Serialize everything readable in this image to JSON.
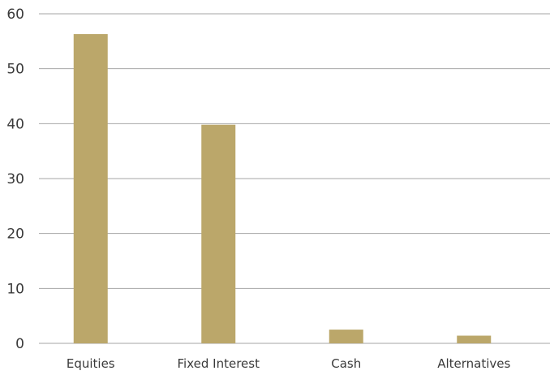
{
  "chart_data": {
    "type": "bar",
    "title": "",
    "xlabel": "",
    "ylabel": "",
    "categories": [
      "Equities",
      "Fixed Interest",
      "Cash",
      "Alternatives"
    ],
    "values": [
      56.3,
      39.8,
      2.5,
      1.4
    ],
    "ylim": [
      0,
      60
    ],
    "yticks": [
      "0",
      "10",
      "20",
      "30",
      "40",
      "50",
      "60"
    ],
    "grid": true,
    "legend": "none",
    "colors": {
      "bar": "#bba76a",
      "grid": "#a6a6a6",
      "text": "#3a3a3a"
    }
  }
}
